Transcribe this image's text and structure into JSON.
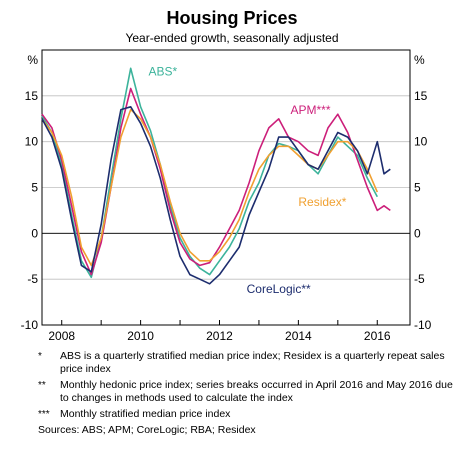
{
  "chart_data": {
    "type": "line",
    "title": "Housing Prices",
    "subtitle": "Year-ended growth, seasonally adjusted",
    "ylabel_left": "%",
    "ylabel_right": "%",
    "xlim": [
      2007.5,
      2016.83
    ],
    "ylim": [
      -10,
      20
    ],
    "x_ticks": [
      2008,
      2010,
      2012,
      2014,
      2016
    ],
    "x_tick_labels": [
      "2008",
      "2010",
      "2012",
      "2014",
      "2016"
    ],
    "y_ticks": [
      -10,
      -5,
      0,
      5,
      10,
      15
    ],
    "y_tick_labels": [
      "-10",
      "-5",
      "0",
      "5",
      "10",
      "15"
    ],
    "grid": "horizontal",
    "series": [
      {
        "name": "ABS*",
        "color": "#3cb39b",
        "points": [
          [
            2007.5,
            12.8
          ],
          [
            2007.75,
            11.0
          ],
          [
            2008.0,
            7.5
          ],
          [
            2008.25,
            2.0
          ],
          [
            2008.5,
            -3.0
          ],
          [
            2008.75,
            -4.8
          ],
          [
            2009.0,
            -0.5
          ],
          [
            2009.25,
            6.0
          ],
          [
            2009.5,
            12.5
          ],
          [
            2009.75,
            18.0
          ],
          [
            2010.0,
            13.8
          ],
          [
            2010.25,
            11.2
          ],
          [
            2010.5,
            7.5
          ],
          [
            2010.75,
            3.0
          ],
          [
            2011.0,
            -0.5
          ],
          [
            2011.25,
            -2.5
          ],
          [
            2011.5,
            -3.8
          ],
          [
            2011.75,
            -4.5
          ],
          [
            2012.0,
            -3.0
          ],
          [
            2012.25,
            -1.5
          ],
          [
            2012.5,
            0.5
          ],
          [
            2012.75,
            3.5
          ],
          [
            2013.0,
            5.5
          ],
          [
            2013.25,
            8.5
          ],
          [
            2013.5,
            9.8
          ],
          [
            2013.75,
            9.5
          ],
          [
            2014.0,
            9.0
          ],
          [
            2014.25,
            7.5
          ],
          [
            2014.5,
            6.5
          ],
          [
            2014.75,
            8.5
          ],
          [
            2015.0,
            10.5
          ],
          [
            2015.25,
            9.5
          ],
          [
            2015.5,
            8.5
          ],
          [
            2015.75,
            6.0
          ],
          [
            2016.0,
            4.0
          ]
        ]
      },
      {
        "name": "APM***",
        "color": "#cc1f7a",
        "points": [
          [
            2007.5,
            13.0
          ],
          [
            2007.75,
            11.5
          ],
          [
            2008.0,
            8.0
          ],
          [
            2008.25,
            3.0
          ],
          [
            2008.5,
            -2.0
          ],
          [
            2008.75,
            -4.5
          ],
          [
            2009.0,
            -1.0
          ],
          [
            2009.25,
            5.0
          ],
          [
            2009.5,
            11.5
          ],
          [
            2009.75,
            15.8
          ],
          [
            2010.0,
            13.0
          ],
          [
            2010.25,
            10.5
          ],
          [
            2010.5,
            7.0
          ],
          [
            2010.75,
            2.5
          ],
          [
            2011.0,
            -1.0
          ],
          [
            2011.25,
            -2.8
          ],
          [
            2011.5,
            -3.5
          ],
          [
            2011.75,
            -3.2
          ],
          [
            2012.0,
            -1.5
          ],
          [
            2012.25,
            0.5
          ],
          [
            2012.5,
            2.5
          ],
          [
            2012.75,
            5.5
          ],
          [
            2013.0,
            9.0
          ],
          [
            2013.25,
            11.5
          ],
          [
            2013.5,
            12.5
          ],
          [
            2013.75,
            10.5
          ],
          [
            2014.0,
            10.0
          ],
          [
            2014.25,
            9.0
          ],
          [
            2014.5,
            8.5
          ],
          [
            2014.75,
            11.5
          ],
          [
            2015.0,
            13.0
          ],
          [
            2015.25,
            11.0
          ],
          [
            2015.5,
            8.0
          ],
          [
            2015.75,
            5.0
          ],
          [
            2016.0,
            2.5
          ],
          [
            2016.17,
            3.0
          ],
          [
            2016.33,
            2.5
          ]
        ]
      },
      {
        "name": "Residex*",
        "color": "#f0a030",
        "points": [
          [
            2007.5,
            12.5
          ],
          [
            2007.75,
            11.0
          ],
          [
            2008.0,
            8.5
          ],
          [
            2008.25,
            4.0
          ],
          [
            2008.5,
            -1.5
          ],
          [
            2008.75,
            -3.5
          ],
          [
            2009.0,
            -0.5
          ],
          [
            2009.25,
            5.0
          ],
          [
            2009.5,
            10.5
          ],
          [
            2009.75,
            13.5
          ],
          [
            2010.0,
            12.5
          ],
          [
            2010.25,
            10.5
          ],
          [
            2010.5,
            7.5
          ],
          [
            2010.75,
            3.5
          ],
          [
            2011.0,
            0.0
          ],
          [
            2011.25,
            -2.0
          ],
          [
            2011.5,
            -3.0
          ],
          [
            2011.75,
            -3.0
          ],
          [
            2012.0,
            -2.0
          ],
          [
            2012.25,
            -0.5
          ],
          [
            2012.5,
            1.5
          ],
          [
            2012.75,
            4.5
          ],
          [
            2013.0,
            7.0
          ],
          [
            2013.25,
            8.5
          ],
          [
            2013.5,
            9.5
          ],
          [
            2013.75,
            9.5
          ],
          [
            2014.0,
            8.5
          ],
          [
            2014.25,
            7.5
          ],
          [
            2014.5,
            7.0
          ],
          [
            2014.75,
            8.5
          ],
          [
            2015.0,
            10.0
          ],
          [
            2015.25,
            10.0
          ],
          [
            2015.5,
            9.0
          ],
          [
            2015.75,
            7.0
          ],
          [
            2016.0,
            4.5
          ]
        ]
      },
      {
        "name": "CoreLogic**",
        "color": "#1d2d6e",
        "points": [
          [
            2007.5,
            12.5
          ],
          [
            2007.75,
            10.5
          ],
          [
            2008.0,
            7.0
          ],
          [
            2008.25,
            1.5
          ],
          [
            2008.5,
            -3.5
          ],
          [
            2008.75,
            -4.2
          ],
          [
            2009.0,
            1.0
          ],
          [
            2009.25,
            8.0
          ],
          [
            2009.5,
            13.5
          ],
          [
            2009.75,
            13.8
          ],
          [
            2010.0,
            12.0
          ],
          [
            2010.25,
            9.5
          ],
          [
            2010.5,
            6.0
          ],
          [
            2010.75,
            1.5
          ],
          [
            2011.0,
            -2.5
          ],
          [
            2011.25,
            -4.5
          ],
          [
            2011.5,
            -5.0
          ],
          [
            2011.75,
            -5.5
          ],
          [
            2012.0,
            -4.5
          ],
          [
            2012.25,
            -3.0
          ],
          [
            2012.5,
            -1.5
          ],
          [
            2012.75,
            2.0
          ],
          [
            2013.0,
            4.5
          ],
          [
            2013.25,
            7.0
          ],
          [
            2013.5,
            10.5
          ],
          [
            2013.75,
            10.5
          ],
          [
            2014.0,
            9.0
          ],
          [
            2014.25,
            7.5
          ],
          [
            2014.5,
            7.0
          ],
          [
            2014.75,
            9.0
          ],
          [
            2015.0,
            11.0
          ],
          [
            2015.25,
            10.5
          ],
          [
            2015.5,
            9.0
          ],
          [
            2015.75,
            6.5
          ],
          [
            2016.0,
            10.0
          ],
          [
            2016.17,
            6.5
          ],
          [
            2016.33,
            7.0
          ]
        ]
      }
    ],
    "annotations": [
      {
        "text": "ABS*",
        "series": "ABS*"
      },
      {
        "text": "APM***",
        "series": "APM***"
      },
      {
        "text": "Residex*",
        "series": "Residex*"
      },
      {
        "text": "CoreLogic**",
        "series": "CoreLogic**"
      }
    ]
  },
  "notes": [
    {
      "mark": "*",
      "text": "ABS is a quarterly stratified median price index; Residex is a quarterly repeat sales price index"
    },
    {
      "mark": "**",
      "text": "Monthly hedonic price index; series breaks occurred in April 2016 and May 2016 due to changes in methods used to calculate the index"
    },
    {
      "mark": "***",
      "text": "Monthly stratified median price index"
    }
  ],
  "sources": "Sources:  ABS; APM; CoreLogic; RBA; Residex"
}
